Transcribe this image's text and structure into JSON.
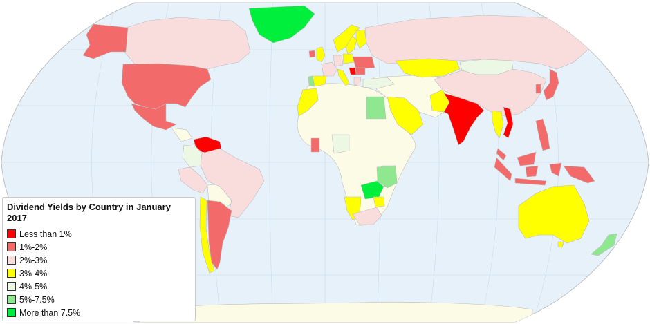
{
  "legend": {
    "title": "Dividend Yields by Country in January 2017",
    "items": [
      {
        "label": "Less than 1%",
        "color": "#ff0000"
      },
      {
        "label": "1%-2%",
        "color": "#f26a6a"
      },
      {
        "label": "2%-3%",
        "color": "#f9dcdc"
      },
      {
        "label": "3%-4%",
        "color": "#ffff00"
      },
      {
        "label": "4%-5%",
        "color": "#ecf8e4"
      },
      {
        "label": "5%-7.5%",
        "color": "#8fe88f"
      },
      {
        "label": "More than 7.5%",
        "color": "#00ee3c"
      }
    ]
  },
  "colors": {
    "ocean": "#e6f1fa",
    "no_data": "#fcfce6",
    "border": "#bdbdbd",
    "graticule": "#c9dcec"
  },
  "countries": [
    {
      "name": "Greenland",
      "bin": 6
    },
    {
      "name": "Canada",
      "bin": 2
    },
    {
      "name": "Alaska (United States)",
      "bin": 1
    },
    {
      "name": "United States",
      "bin": 1
    },
    {
      "name": "Mexico",
      "bin": 1
    },
    {
      "name": "Venezuela",
      "bin": 0
    },
    {
      "name": "Colombia",
      "bin": 4
    },
    {
      "name": "Brazil",
      "bin": 2
    },
    {
      "name": "Peru",
      "bin": 2
    },
    {
      "name": "Chile",
      "bin": 3
    },
    {
      "name": "Argentina",
      "bin": 1
    },
    {
      "name": "Russia",
      "bin": 2
    },
    {
      "name": "Kazakhstan",
      "bin": 3
    },
    {
      "name": "Mongolia",
      "bin": 4
    },
    {
      "name": "China",
      "bin": 2
    },
    {
      "name": "India",
      "bin": 0
    },
    {
      "name": "Pakistan",
      "bin": 3
    },
    {
      "name": "Saudi Arabia",
      "bin": 3
    },
    {
      "name": "Egypt",
      "bin": 5
    },
    {
      "name": "Morocco",
      "bin": 3
    },
    {
      "name": "Turkey",
      "bin": 4
    },
    {
      "name": "Thailand",
      "bin": 3
    },
    {
      "name": "Vietnam",
      "bin": 0
    },
    {
      "name": "Malaysia",
      "bin": 1
    },
    {
      "name": "Philippines",
      "bin": 1
    },
    {
      "name": "Indonesia",
      "bin": 1
    },
    {
      "name": "Papua New Guinea",
      "bin": 1
    },
    {
      "name": "Japan",
      "bin": 1
    },
    {
      "name": "South Korea",
      "bin": 1
    },
    {
      "name": "Australia",
      "bin": 3
    },
    {
      "name": "New Zealand",
      "bin": 5
    },
    {
      "name": "Kenya",
      "bin": 5
    },
    {
      "name": "Tanzania",
      "bin": 5
    },
    {
      "name": "Zambia",
      "bin": 6
    },
    {
      "name": "Zimbabwe",
      "bin": 3
    },
    {
      "name": "Namibia",
      "bin": 3
    },
    {
      "name": "South Africa",
      "bin": 2
    },
    {
      "name": "Nigeria",
      "bin": 4
    },
    {
      "name": "Ghana",
      "bin": 1
    },
    {
      "name": "Norway",
      "bin": 3
    },
    {
      "name": "Sweden",
      "bin": 3
    },
    {
      "name": "Finland",
      "bin": 3
    },
    {
      "name": "United Kingdom",
      "bin": 3
    },
    {
      "name": "Ireland",
      "bin": 1
    },
    {
      "name": "France",
      "bin": 2
    },
    {
      "name": "Spain",
      "bin": 3
    },
    {
      "name": "Portugal",
      "bin": 5
    },
    {
      "name": "Germany",
      "bin": 2
    },
    {
      "name": "Poland",
      "bin": 3
    },
    {
      "name": "Ukraine",
      "bin": 1
    },
    {
      "name": "Italy",
      "bin": 3
    },
    {
      "name": "Greece",
      "bin": 2
    },
    {
      "name": "Romania",
      "bin": 1
    },
    {
      "name": "Serbia",
      "bin": 0
    }
  ]
}
